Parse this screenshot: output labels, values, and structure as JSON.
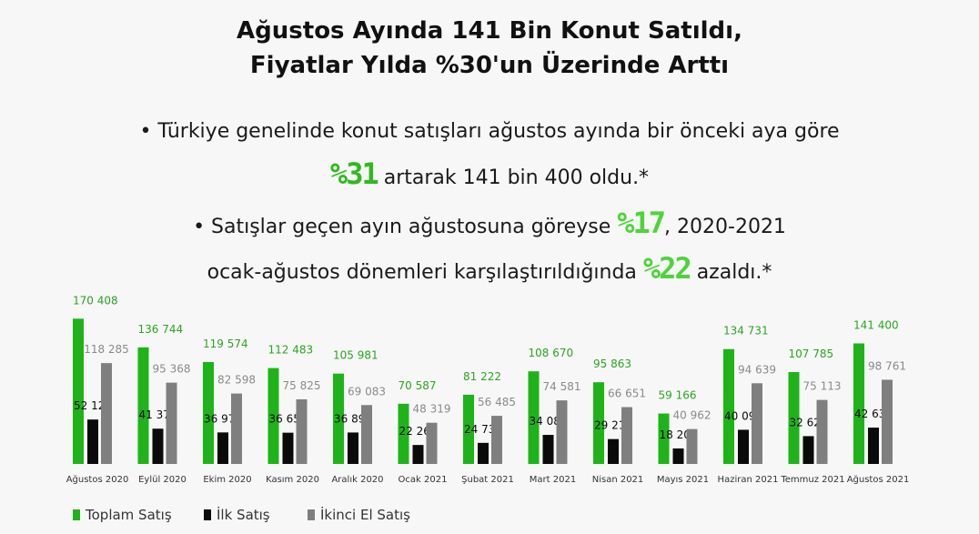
{
  "header": {
    "title_line1": "Ağustos Ayında 141 Bin Konut Satıldı,",
    "title_line2": "Fiyatlar Yılda %30'un Üzerinde Arttı"
  },
  "bullets": {
    "b1_text_a": "• Türkiye genelinde konut satışları ağustos ayında bir önceki aya göre",
    "b1_highlight": "%31",
    "b1_text_b": " artarak 141 bin 400 oldu.*",
    "b2_text_a": "• Satışlar geçen ayın ağustosuna göreyse ",
    "b2_highlight": "%17",
    "b2_text_b": ", 2020-2021",
    "b3_text_a": "ocak-ağustos dönemleri karşılaştırıldığında ",
    "b3_highlight": "%22",
    "b3_text_b": " azaldı.*"
  },
  "colors": {
    "total": "#1fb31a",
    "first": "#0a0a0a",
    "second": "#7f7f7f",
    "total_label": "#2aa61f",
    "second_label": "#8a8a8a",
    "highlight_dark": "#2fba1e",
    "highlight_light": "#4ed43a"
  },
  "chart_data": {
    "type": "bar",
    "categories": [
      "Ağustos 2020",
      "Eylül 2020",
      "Ekim 2020",
      "Kasım 2020",
      "Aralık 2020",
      "Ocak 2021",
      "Şubat 2021",
      "Mart 2021",
      "Nisan 2021",
      "Mayıs 2021",
      "Haziran 2021",
      "Temmuz 2021",
      "Ağustos 2021"
    ],
    "series": [
      {
        "name": "Toplam Satış",
        "values": [
          170408,
          136744,
          119574,
          112483,
          105981,
          70587,
          81222,
          108670,
          95863,
          59166,
          134731,
          107785,
          141400
        ],
        "labels": [
          "170 408",
          "136 744",
          "119 574",
          "112 483",
          "105 981",
          "70 587",
          "81 222",
          "108 670",
          "95 863",
          "59 166",
          "134 731",
          "107 785",
          "141 400"
        ]
      },
      {
        "name": "İlk Satış",
        "values": [
          52123,
          41376,
          36976,
          36658,
          36898,
          22268,
          24737,
          34089,
          29212,
          18204,
          40092,
          32627,
          42639
        ],
        "labels": [
          "52 123",
          "41 376",
          "36 976",
          "36 658",
          "36 898",
          "22 268",
          "24 737",
          "34 089",
          "29 212",
          "18 204",
          "40 092",
          "32 627",
          "42 639"
        ]
      },
      {
        "name": "İkinci El Satış",
        "values": [
          118285,
          95368,
          82598,
          75825,
          69083,
          48319,
          56485,
          74581,
          66651,
          40962,
          94639,
          75113,
          98761
        ],
        "labels": [
          "118 285",
          "95 368",
          "82 598",
          "75 825",
          "69 083",
          "48 319",
          "56 485",
          "74 581",
          "66 651",
          "40 962",
          "94 639",
          "75 113",
          "98 761"
        ]
      }
    ],
    "ylim": [
      0,
      175000
    ],
    "grid": false,
    "legend_position": "bottom-left"
  }
}
